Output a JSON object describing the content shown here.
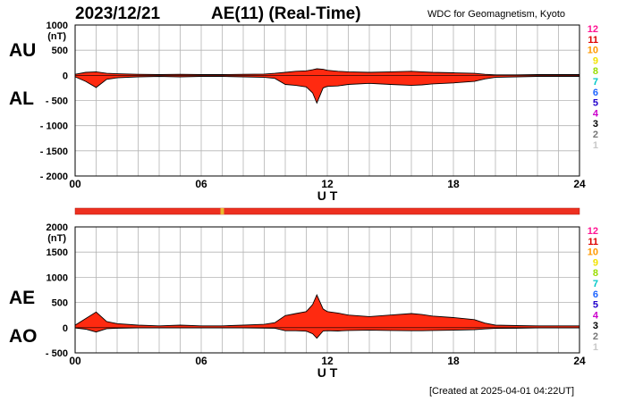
{
  "header": {
    "date": "2023/12/21",
    "title": "AE(11) (Real-Time)",
    "organization": "WDC for Geomagnetism, Kyoto"
  },
  "footer": {
    "created": "[Created at 2025-04-01 04:22UT]"
  },
  "colors": {
    "fill": "#ff2a10",
    "grid": "#b4b4b4",
    "status_bar": "#ee3020",
    "status_marker": "#e8b830"
  },
  "level_scale": {
    "labels": [
      "12",
      "11",
      "10",
      "9",
      "8",
      "7",
      "6",
      "5",
      "4",
      "3",
      "2",
      "1"
    ],
    "colors": [
      "#ff1493",
      "#dd0000",
      "#ff9900",
      "#f2e200",
      "#99dd00",
      "#00c8c8",
      "#1e64ff",
      "#2200cc",
      "#cc00cc",
      "#000000",
      "#777777",
      "#c8c8c8"
    ]
  },
  "chart_data": [
    {
      "type": "area",
      "panel": "AU / AL",
      "side_labels": [
        "AU",
        "AL"
      ],
      "unit_label": "(nT)",
      "xlabel": "U T",
      "ylabel": "",
      "xlim": [
        0,
        24
      ],
      "ylim": [
        -2000,
        1000
      ],
      "xticks": [
        "00",
        "06",
        "12",
        "18",
        "24"
      ],
      "yticks": [
        "1000",
        "500",
        "0",
        "- 500",
        "- 1000",
        "- 1500",
        "- 2000"
      ],
      "x": [
        0,
        0.5,
        1,
        1.5,
        2,
        3,
        4,
        5,
        6,
        7,
        8,
        9,
        9.5,
        10,
        10.5,
        11,
        11.3,
        11.5,
        11.8,
        12,
        12.5,
        13,
        14,
        15,
        16,
        16.5,
        17,
        18,
        19,
        19.5,
        20,
        21,
        22,
        23,
        24
      ],
      "series": [
        {
          "values": [
            20,
            60,
            70,
            40,
            30,
            20,
            15,
            20,
            15,
            15,
            20,
            25,
            40,
            60,
            80,
            90,
            110,
            130,
            120,
            100,
            80,
            70,
            60,
            70,
            80,
            70,
            60,
            50,
            40,
            20,
            10,
            10,
            15,
            15,
            15
          ]
        },
        {
          "values": [
            -30,
            -120,
            -240,
            -80,
            -50,
            -30,
            -20,
            -30,
            -20,
            -20,
            -30,
            -40,
            -60,
            -180,
            -200,
            -230,
            -350,
            -550,
            -250,
            -220,
            -210,
            -180,
            -160,
            -180,
            -200,
            -190,
            -170,
            -150,
            -120,
            -70,
            -40,
            -30,
            -20,
            -20,
            -20
          ]
        }
      ]
    },
    {
      "type": "area",
      "panel": "AE / AO",
      "side_labels": [
        "AE",
        "AO"
      ],
      "unit_label": "(nT)",
      "xlabel": "U T",
      "ylabel": "",
      "xlim": [
        0,
        24
      ],
      "ylim": [
        -500,
        2000
      ],
      "xticks": [
        "00",
        "06",
        "12",
        "18",
        "24"
      ],
      "yticks": [
        "2000",
        "1500",
        "1000",
        "500",
        "0",
        "- 500"
      ],
      "x": [
        0,
        0.5,
        1,
        1.5,
        2,
        3,
        4,
        5,
        6,
        7,
        8,
        9,
        9.5,
        10,
        10.5,
        11,
        11.3,
        11.5,
        11.8,
        12,
        12.5,
        13,
        14,
        15,
        16,
        16.5,
        17,
        18,
        19,
        19.5,
        20,
        21,
        22,
        23,
        24
      ],
      "series": [
        {
          "name": "AE",
          "values": [
            50,
            180,
            310,
            120,
            80,
            50,
            35,
            50,
            35,
            35,
            50,
            65,
            100,
            240,
            280,
            320,
            460,
            650,
            370,
            320,
            290,
            250,
            220,
            250,
            280,
            260,
            230,
            200,
            160,
            90,
            50,
            40,
            35,
            35,
            35
          ]
        },
        {
          "name": "AO",
          "values": [
            -5,
            -30,
            -85,
            -20,
            -10,
            -5,
            -3,
            -5,
            -3,
            -3,
            -5,
            -8,
            -10,
            -60,
            -60,
            -70,
            -120,
            -210,
            -65,
            -60,
            -65,
            -55,
            -50,
            -55,
            -60,
            -60,
            -55,
            -50,
            -40,
            -25,
            -15,
            -10,
            -3,
            -3,
            -3
          ]
        }
      ]
    }
  ]
}
